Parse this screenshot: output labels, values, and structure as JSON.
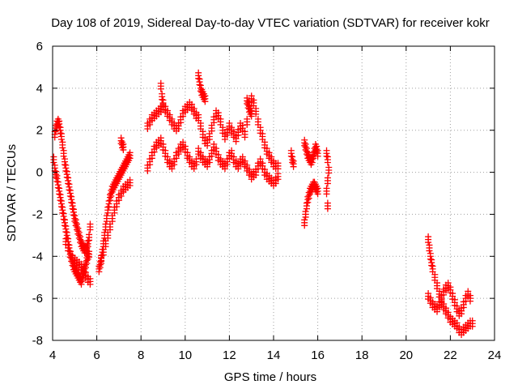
{
  "chart_data": {
    "type": "scatter",
    "title": "Day 108 of 2019, Sidereal Day-to-day VTEC variation (SDTVAR) for receiver kokr",
    "xlabel": "GPS time / hours",
    "ylabel": "SDTVAR / TECUs",
    "xlim": [
      4,
      24
    ],
    "ylim": [
      -8,
      6
    ],
    "xticks": [
      4,
      6,
      8,
      10,
      12,
      14,
      16,
      18,
      20,
      22,
      24
    ],
    "yticks": [
      -8,
      -6,
      -4,
      -2,
      0,
      2,
      4,
      6
    ],
    "grid": true,
    "marker": "+",
    "colors": {
      "series": "#ff0000",
      "axes": "#000000",
      "grid": "#a0a0a0"
    },
    "series": [
      {
        "name": "SDTVAR",
        "x": [
          4.05,
          4.1,
          4.15,
          4.2,
          4.25,
          4.3,
          4.35,
          4.4,
          4.45,
          4.5,
          4.55,
          4.6,
          4.65,
          4.7,
          4.75,
          4.8,
          4.85,
          4.9,
          4.95,
          5.0,
          5.05,
          5.1,
          5.15,
          5.2,
          5.25,
          5.3,
          5.35,
          5.4,
          5.45,
          5.5,
          5.55,
          5.6,
          5.65,
          4.1,
          4.15,
          4.2,
          4.25,
          4.3,
          4.35,
          4.4,
          4.45,
          4.5,
          4.55,
          4.6,
          4.65,
          4.7,
          4.75,
          4.8,
          4.85,
          4.9,
          4.95,
          5.0,
          5.05,
          5.1,
          5.15,
          5.2,
          5.25,
          5.3,
          5.35,
          5.4,
          5.45,
          5.5,
          5.55,
          5.6,
          5.65,
          5.7,
          4.6,
          4.7,
          4.8,
          4.9,
          5.0,
          5.1,
          5.2,
          5.3,
          5.4,
          5.5,
          5.6,
          5.7,
          6.1,
          6.15,
          6.2,
          6.25,
          6.3,
          6.35,
          6.4,
          6.45,
          6.5,
          6.55,
          6.6,
          6.65,
          6.7,
          6.75,
          6.8,
          6.85,
          6.9,
          6.95,
          7.0,
          7.05,
          7.1,
          7.15,
          7.2,
          7.25,
          7.3,
          7.35,
          7.4,
          7.45,
          7.5,
          6.2,
          6.3,
          6.4,
          6.5,
          6.6,
          6.7,
          6.8,
          6.9,
          7.0,
          7.1,
          7.2,
          7.3,
          7.4,
          7.5,
          7.1,
          7.15,
          7.2,
          8.3,
          8.4,
          8.5,
          8.6,
          8.7,
          8.8,
          8.9,
          9.0,
          9.1,
          9.2,
          9.3,
          9.4,
          9.5,
          9.6,
          9.7,
          9.8,
          9.9,
          10.0,
          10.1,
          10.2,
          10.3,
          10.4,
          10.5,
          8.3,
          8.4,
          8.5,
          8.6,
          8.7,
          8.8,
          8.9,
          9.0,
          9.1,
          9.2,
          9.3,
          9.4,
          9.5,
          9.6,
          9.7,
          9.8,
          9.9,
          10.0,
          10.1,
          10.2,
          10.3,
          10.4,
          10.5,
          8.9,
          8.95,
          9.0,
          10.6,
          10.65,
          10.7,
          10.75,
          10.8,
          10.85,
          10.9,
          10.6,
          10.7,
          10.8,
          10.9,
          11.0,
          11.1,
          11.2,
          11.3,
          11.4,
          11.5,
          11.6,
          11.7,
          11.8,
          11.9,
          12.0,
          12.1,
          12.2,
          12.3,
          12.4,
          12.5,
          12.6,
          12.7,
          12.8,
          12.9,
          13.0,
          13.1,
          13.2,
          13.3,
          13.4,
          13.5,
          13.6,
          13.7,
          13.8,
          13.9,
          14.0,
          14.1,
          14.2,
          10.6,
          10.7,
          10.8,
          10.9,
          11.0,
          11.1,
          11.2,
          11.3,
          11.4,
          11.5,
          11.6,
          11.7,
          11.8,
          11.9,
          12.0,
          12.1,
          12.2,
          12.3,
          12.4,
          12.5,
          12.6,
          12.7,
          12.8,
          12.9,
          13.0,
          13.1,
          13.2,
          13.3,
          13.4,
          13.5,
          13.6,
          13.7,
          13.8,
          13.9,
          14.0,
          14.1,
          14.2,
          12.8,
          12.85,
          12.9,
          12.95,
          13.0,
          14.8,
          14.85,
          14.9,
          15.4,
          15.45,
          15.5,
          15.55,
          15.6,
          15.65,
          15.7,
          15.75,
          15.8,
          15.85,
          15.9,
          15.95,
          16.0,
          15.4,
          15.45,
          15.5,
          15.55,
          15.6,
          15.65,
          15.7,
          15.75,
          15.8,
          15.85,
          15.9,
          15.95,
          16.0,
          16.4,
          16.45,
          16.5,
          16.45,
          16.4,
          16.45,
          21.0,
          21.05,
          21.1,
          21.15,
          21.2,
          21.3,
          21.4,
          21.5,
          21.6,
          21.7,
          21.8,
          21.9,
          22.0,
          22.1,
          22.2,
          22.3,
          22.4,
          22.5,
          22.6,
          22.7,
          22.8,
          22.9,
          23.0,
          21.0,
          21.1,
          21.2,
          21.3,
          21.4,
          21.5,
          21.6,
          21.7,
          21.8,
          21.9,
          22.0,
          22.1,
          22.2,
          22.3,
          22.4,
          22.5,
          22.6,
          22.7,
          22.8,
          22.9
        ],
        "y": [
          0.6,
          0.2,
          -0.1,
          -0.3,
          -0.6,
          -0.9,
          -1.2,
          -1.5,
          -1.8,
          -2.1,
          -2.4,
          -2.7,
          -3.0,
          -3.3,
          -3.6,
          -3.9,
          -4.1,
          -4.3,
          -4.5,
          -4.6,
          -4.7,
          -4.8,
          -4.9,
          -5.0,
          -5.1,
          -5.2,
          -5.0,
          -4.8,
          -4.6,
          -4.4,
          -4.2,
          -4.0,
          -3.9,
          1.8,
          2.1,
          2.3,
          2.4,
          2.3,
          2.0,
          1.7,
          1.3,
          0.9,
          0.5,
          0.2,
          -0.1,
          -0.4,
          -0.7,
          -1.0,
          -1.3,
          -1.6,
          -1.9,
          -2.2,
          -2.4,
          -2.6,
          -2.8,
          -3.0,
          -3.2,
          -3.4,
          -3.5,
          -3.6,
          -3.7,
          -3.7,
          -3.6,
          -3.4,
          -3.1,
          -2.6,
          -3.3,
          -3.6,
          -3.9,
          -4.1,
          -4.2,
          -4.3,
          -4.4,
          -4.5,
          -4.7,
          -4.9,
          -5.1,
          -5.2,
          -4.6,
          -4.4,
          -4.1,
          -3.8,
          -3.4,
          -3.0,
          -2.6,
          -2.2,
          -1.8,
          -1.5,
          -1.2,
          -1.0,
          -0.8,
          -0.7,
          -0.6,
          -0.5,
          -0.4,
          -0.3,
          -0.2,
          -0.1,
          0.0,
          0.1,
          0.2,
          0.3,
          0.4,
          0.5,
          0.6,
          0.7,
          0.8,
          -4.2,
          -3.8,
          -3.4,
          -3.0,
          -2.6,
          -2.2,
          -1.8,
          -1.5,
          -1.2,
          -1.0,
          -0.8,
          -0.7,
          -0.6,
          -0.5,
          1.5,
          1.3,
          1.2,
          2.2,
          2.4,
          2.6,
          2.7,
          2.8,
          2.9,
          3.0,
          3.1,
          3.0,
          2.8,
          2.6,
          2.4,
          2.2,
          2.1,
          2.2,
          2.5,
          2.8,
          3.0,
          3.1,
          3.2,
          3.1,
          2.9,
          2.7,
          0.2,
          0.5,
          0.8,
          1.1,
          1.3,
          1.4,
          1.5,
          1.2,
          0.9,
          0.6,
          0.4,
          0.3,
          0.5,
          0.8,
          1.0,
          1.2,
          1.3,
          1.1,
          0.8,
          0.6,
          0.4,
          0.3,
          0.5,
          4.1,
          3.6,
          3.3,
          4.6,
          4.3,
          4.0,
          3.8,
          3.7,
          3.6,
          3.5,
          2.6,
          2.2,
          1.8,
          1.5,
          1.4,
          1.7,
          2.1,
          2.5,
          2.8,
          2.7,
          2.4,
          2.0,
          1.7,
          1.9,
          2.2,
          2.0,
          1.8,
          1.6,
          1.9,
          2.2,
          2.1,
          1.8,
          2.4,
          3.2,
          3.5,
          3.3,
          2.9,
          2.4,
          2.0,
          1.7,
          1.3,
          1.0,
          0.8,
          0.6,
          0.4,
          0.3,
          0.3,
          1.0,
          0.8,
          0.6,
          0.5,
          0.4,
          0.6,
          0.9,
          1.2,
          1.0,
          0.7,
          0.5,
          0.4,
          0.3,
          0.5,
          0.8,
          0.9,
          0.6,
          0.4,
          0.3,
          0.5,
          0.6,
          0.4,
          0.2,
          0.0,
          -0.2,
          -0.1,
          0.0,
          0.3,
          0.5,
          0.3,
          0.0,
          -0.2,
          -0.3,
          -0.4,
          -0.5,
          -0.4,
          -0.2,
          3.4,
          3.2,
          3.0,
          2.9,
          2.8,
          0.9,
          0.6,
          0.4,
          1.4,
          1.2,
          1.0,
          0.8,
          0.7,
          0.6,
          0.5,
          0.6,
          0.8,
          1.0,
          1.2,
          1.1,
          0.9,
          -2.4,
          -2.0,
          -1.6,
          -1.3,
          -1.1,
          -0.9,
          -0.8,
          -0.7,
          -0.6,
          -0.6,
          -0.7,
          -0.8,
          -0.9,
          0.9,
          0.6,
          0.1,
          -0.4,
          -0.9,
          -1.6,
          -3.2,
          -3.6,
          -4.0,
          -4.3,
          -4.6,
          -5.0,
          -5.4,
          -5.8,
          -6.2,
          -6.4,
          -6.6,
          -6.8,
          -7.0,
          -7.1,
          -7.2,
          -7.3,
          -7.5,
          -7.6,
          -7.5,
          -7.4,
          -7.3,
          -7.2,
          -7.2,
          -5.9,
          -6.1,
          -6.3,
          -6.4,
          -6.5,
          -6.3,
          -6.0,
          -5.7,
          -5.5,
          -5.4,
          -5.6,
          -5.9,
          -6.2,
          -6.5,
          -6.7,
          -6.6,
          -6.3,
          -6.0,
          -5.8,
          -6.0
        ]
      }
    ]
  }
}
